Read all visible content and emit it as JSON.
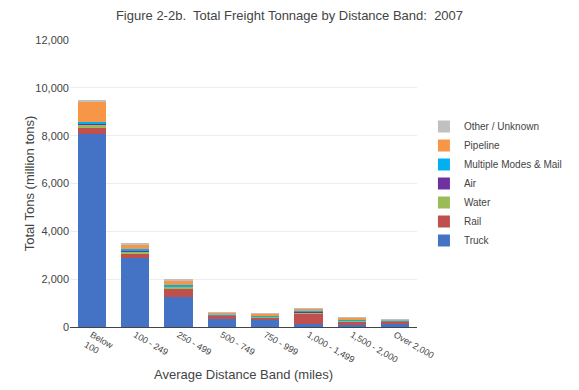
{
  "chart_data": {
    "type": "bar",
    "stacked": true,
    "title": "Figure 2-2b.  Total Freight Tonnage by Distance Band:  2007",
    "xlabel": "Average Distance Band (miles)",
    "ylabel": "Total Tons (million tons)",
    "categories": [
      "Below\n100",
      "100 - 249",
      "250 - 499",
      "500 - 749",
      "750 - 999",
      "1,000 - 1,499",
      "1,500 - 2,000",
      "Over 2,000"
    ],
    "series": [
      {
        "name": "Truck",
        "color": "#4472C4",
        "values": [
          8050,
          2900,
          1250,
          340,
          280,
          110,
          75,
          130
        ]
      },
      {
        "name": "Rail",
        "color": "#C0504D",
        "values": [
          290,
          190,
          370,
          120,
          130,
          450,
          170,
          90
        ]
      },
      {
        "name": "Water",
        "color": "#9BBB59",
        "values": [
          140,
          75,
          55,
          25,
          30,
          55,
          35,
          18
        ]
      },
      {
        "name": "Air",
        "color": "#7030A0",
        "values": [
          25,
          18,
          18,
          8,
          8,
          12,
          8,
          4
        ]
      },
      {
        "name": "Multiple Modes & Mail",
        "color": "#00B0F0",
        "values": [
          75,
          75,
          55,
          28,
          28,
          38,
          28,
          18
        ]
      },
      {
        "name": "Pipeline",
        "color": "#F79646",
        "values": [
          860,
          185,
          190,
          75,
          70,
          90,
          75,
          45
        ]
      },
      {
        "name": "Other / Unknown",
        "color": "#C0C0C0",
        "values": [
          45,
          45,
          45,
          25,
          25,
          28,
          18,
          18
        ]
      }
    ],
    "ylim": [
      0,
      12000
    ],
    "yticks": [
      0,
      {
        "value": 2000,
        "label": "2,000"
      },
      {
        "value": 4000,
        "label": "4,000"
      },
      {
        "value": 6000,
        "label": "6,000"
      },
      {
        "value": 8000,
        "label": "8,000"
      },
      {
        "value": 10000,
        "label": "10,000"
      },
      {
        "value": 12000,
        "label": "12,000"
      }
    ],
    "grid": true,
    "legend": "right"
  }
}
